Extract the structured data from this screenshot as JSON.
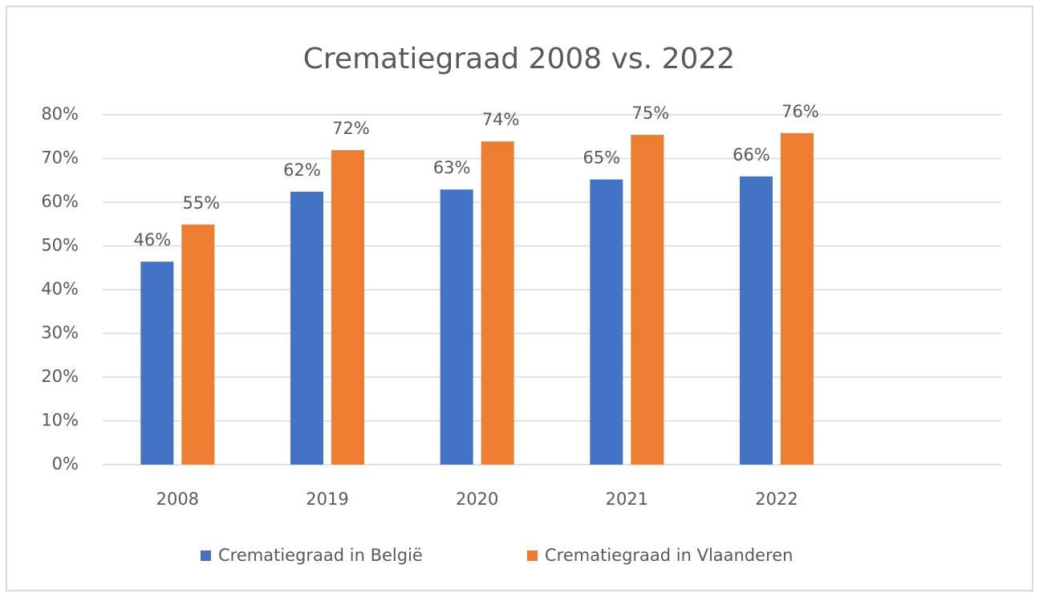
{
  "chart_data": {
    "type": "bar",
    "title": "Crematiegraad 2008 vs. 2022",
    "categories": [
      "2008",
      "2019",
      "2020",
      "2021",
      "2022",
      null
    ],
    "series": [
      {
        "name": "Crematiegraad in België",
        "color": "#4472c4",
        "values": [
          46.4,
          62.4,
          62.9,
          65.2,
          65.9,
          null
        ],
        "value_labels": [
          "46%",
          "62%",
          "63%",
          "65%",
          "66%",
          null
        ]
      },
      {
        "name": "Crematiegraad in Vlaanderen",
        "color": "#ed7d31",
        "values": [
          54.9,
          71.9,
          73.9,
          75.4,
          75.8,
          null
        ],
        "value_labels": [
          "55%",
          "72%",
          "74%",
          "75%",
          "76%",
          null
        ]
      }
    ],
    "ylim": [
      0,
      80
    ],
    "yticks": [
      {
        "value": 0,
        "label": "0%"
      },
      {
        "value": 10,
        "label": "10%"
      },
      {
        "value": 20,
        "label": "20%"
      },
      {
        "value": 30,
        "label": "30%"
      },
      {
        "value": 40,
        "label": "40%"
      },
      {
        "value": 50,
        "label": "50%"
      },
      {
        "value": 60,
        "label": "60%"
      },
      {
        "value": 70,
        "label": "70%"
      },
      {
        "value": 80,
        "label": "80%"
      }
    ],
    "grid": true,
    "legend": "bottom"
  }
}
